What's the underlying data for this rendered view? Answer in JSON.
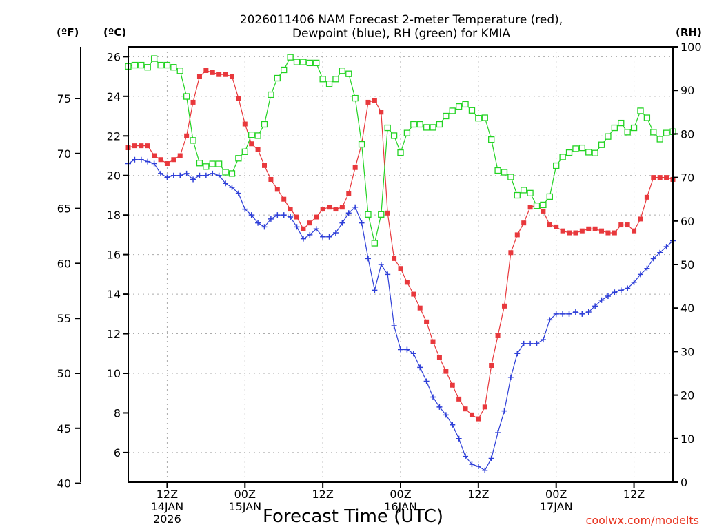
{
  "chart_data": {
    "type": "line",
    "title": "2026011406 NAM Forecast 2-meter Temperature (red),",
    "subtitle": "Dewpoint (blue), RH (green) for KMIA",
    "xlabel": "Forecast Time (UTC)",
    "credit": "coolwx.com/modelts",
    "left_unit_f": "(ºF)",
    "left_unit_c": "(ºC)",
    "right_unit": "(RH)",
    "x_unit": "hours since 2026-01-14 06Z",
    "xlim": [
      6,
      90
    ],
    "ylim_c": [
      4.5,
      26.5
    ],
    "ylim_rh": [
      0,
      100
    ],
    "grid": true,
    "x_ticks": [
      {
        "x": 12,
        "l1": "12Z",
        "l2": "14JAN",
        "l3": "2026"
      },
      {
        "x": 24,
        "l1": "00Z",
        "l2": "15JAN",
        "l3": ""
      },
      {
        "x": 36,
        "l1": "12Z",
        "l2": "",
        "l3": ""
      },
      {
        "x": 48,
        "l1": "00Z",
        "l2": "16JAN",
        "l3": ""
      },
      {
        "x": 60,
        "l1": "12Z",
        "l2": "",
        "l3": ""
      },
      {
        "x": 72,
        "l1": "00Z",
        "l2": "17JAN",
        "l3": ""
      },
      {
        "x": 84,
        "l1": "12Z",
        "l2": "",
        "l3": ""
      }
    ],
    "c_ticks": [
      6,
      8,
      10,
      12,
      14,
      16,
      18,
      20,
      22,
      24,
      26
    ],
    "f_ticks": [
      40,
      45,
      50,
      55,
      60,
      65,
      70,
      75
    ],
    "rh_ticks": [
      0,
      10,
      20,
      30,
      40,
      50,
      60,
      70,
      80,
      90,
      100
    ],
    "series": [
      {
        "name": "Temperature",
        "color": "#e8383c",
        "marker": "square-filled",
        "axis": "c",
        "points": [
          [
            6,
            21.4
          ],
          [
            7,
            21.5
          ],
          [
            8,
            21.5
          ],
          [
            9,
            21.5
          ],
          [
            10,
            21.0
          ],
          [
            11,
            20.8
          ],
          [
            12,
            20.6
          ],
          [
            13,
            20.8
          ],
          [
            14,
            21.0
          ],
          [
            15,
            22.0
          ],
          [
            16,
            23.7
          ],
          [
            17,
            25.0
          ],
          [
            18,
            25.3
          ],
          [
            19,
            25.2
          ],
          [
            20,
            25.1
          ],
          [
            21,
            25.1
          ],
          [
            22,
            25.0
          ],
          [
            23,
            23.9
          ],
          [
            24,
            22.6
          ],
          [
            25,
            21.6
          ],
          [
            26,
            21.3
          ],
          [
            27,
            20.5
          ],
          [
            28,
            19.8
          ],
          [
            29,
            19.3
          ],
          [
            30,
            18.8
          ],
          [
            31,
            18.3
          ],
          [
            32,
            17.9
          ],
          [
            33,
            17.3
          ],
          [
            34,
            17.6
          ],
          [
            35,
            17.9
          ],
          [
            36,
            18.3
          ],
          [
            37,
            18.4
          ],
          [
            38,
            18.3
          ],
          [
            39,
            18.4
          ],
          [
            40,
            19.1
          ],
          [
            41,
            20.4
          ],
          [
            42,
            21.6
          ],
          [
            43,
            23.7
          ],
          [
            44,
            23.8
          ],
          [
            45,
            23.2
          ],
          [
            46,
            18.1
          ],
          [
            47,
            15.8
          ],
          [
            48,
            15.3
          ],
          [
            49,
            14.6
          ],
          [
            50,
            14.0
          ],
          [
            51,
            13.3
          ],
          [
            52,
            12.6
          ],
          [
            53,
            11.6
          ],
          [
            54,
            10.8
          ],
          [
            55,
            10.1
          ],
          [
            56,
            9.4
          ],
          [
            57,
            8.7
          ],
          [
            58,
            8.2
          ],
          [
            59,
            7.9
          ],
          [
            60,
            7.7
          ],
          [
            61,
            8.3
          ],
          [
            62,
            10.4
          ],
          [
            63,
            11.9
          ],
          [
            64,
            13.4
          ],
          [
            65,
            16.1
          ],
          [
            66,
            17.0
          ],
          [
            67,
            17.6
          ],
          [
            68,
            18.4
          ],
          [
            69,
            18.5
          ],
          [
            70,
            18.2
          ],
          [
            71,
            17.5
          ],
          [
            72,
            17.4
          ],
          [
            73,
            17.2
          ],
          [
            74,
            17.1
          ],
          [
            75,
            17.1
          ],
          [
            76,
            17.2
          ],
          [
            77,
            17.3
          ],
          [
            78,
            17.3
          ],
          [
            79,
            17.2
          ],
          [
            80,
            17.1
          ],
          [
            81,
            17.1
          ],
          [
            82,
            17.5
          ],
          [
            83,
            17.5
          ],
          [
            84,
            17.2
          ],
          [
            85,
            17.8
          ],
          [
            86,
            18.9
          ],
          [
            87,
            19.9
          ],
          [
            88,
            19.9
          ],
          [
            89,
            19.9
          ],
          [
            90,
            19.8
          ]
        ]
      },
      {
        "name": "Dewpoint",
        "color": "#2e3fd8",
        "marker": "plus",
        "axis": "c",
        "points": [
          [
            6,
            20.6
          ],
          [
            7,
            20.8
          ],
          [
            8,
            20.8
          ],
          [
            9,
            20.7
          ],
          [
            10,
            20.6
          ],
          [
            11,
            20.1
          ],
          [
            12,
            19.9
          ],
          [
            13,
            20.0
          ],
          [
            14,
            20.0
          ],
          [
            15,
            20.1
          ],
          [
            16,
            19.8
          ],
          [
            17,
            20.0
          ],
          [
            18,
            20.0
          ],
          [
            19,
            20.1
          ],
          [
            20,
            20.0
          ],
          [
            21,
            19.6
          ],
          [
            22,
            19.4
          ],
          [
            23,
            19.1
          ],
          [
            24,
            18.3
          ],
          [
            25,
            18.0
          ],
          [
            26,
            17.6
          ],
          [
            27,
            17.4
          ],
          [
            28,
            17.8
          ],
          [
            29,
            18.0
          ],
          [
            30,
            18.0
          ],
          [
            31,
            17.9
          ],
          [
            32,
            17.4
          ],
          [
            33,
            16.8
          ],
          [
            34,
            17.0
          ],
          [
            35,
            17.3
          ],
          [
            36,
            16.9
          ],
          [
            37,
            16.9
          ],
          [
            38,
            17.1
          ],
          [
            39,
            17.6
          ],
          [
            40,
            18.1
          ],
          [
            41,
            18.4
          ],
          [
            42,
            17.6
          ],
          [
            43,
            15.8
          ],
          [
            44,
            14.2
          ],
          [
            45,
            15.5
          ],
          [
            46,
            15.0
          ],
          [
            47,
            12.4
          ],
          [
            48,
            11.2
          ],
          [
            49,
            11.2
          ],
          [
            50,
            11.0
          ],
          [
            51,
            10.3
          ],
          [
            52,
            9.6
          ],
          [
            53,
            8.8
          ],
          [
            54,
            8.3
          ],
          [
            55,
            7.9
          ],
          [
            56,
            7.4
          ],
          [
            57,
            6.7
          ],
          [
            58,
            5.8
          ],
          [
            59,
            5.4
          ],
          [
            60,
            5.3
          ],
          [
            61,
            5.1
          ],
          [
            62,
            5.7
          ],
          [
            63,
            7.0
          ],
          [
            64,
            8.1
          ],
          [
            65,
            9.8
          ],
          [
            66,
            11.0
          ],
          [
            67,
            11.5
          ],
          [
            68,
            11.5
          ],
          [
            69,
            11.5
          ],
          [
            70,
            11.7
          ],
          [
            71,
            12.7
          ],
          [
            72,
            13.0
          ],
          [
            73,
            13.0
          ],
          [
            74,
            13.0
          ],
          [
            75,
            13.1
          ],
          [
            76,
            13.0
          ],
          [
            77,
            13.1
          ],
          [
            78,
            13.4
          ],
          [
            79,
            13.7
          ],
          [
            80,
            13.9
          ],
          [
            81,
            14.1
          ],
          [
            82,
            14.2
          ],
          [
            83,
            14.3
          ],
          [
            84,
            14.6
          ],
          [
            85,
            15.0
          ],
          [
            86,
            15.3
          ],
          [
            87,
            15.8
          ],
          [
            88,
            16.1
          ],
          [
            89,
            16.4
          ],
          [
            90,
            16.7
          ]
        ]
      },
      {
        "name": "RH",
        "color": "#22d322",
        "marker": "square-open",
        "axis": "rh",
        "points": [
          [
            6,
            95.5
          ],
          [
            7,
            95.8
          ],
          [
            8,
            95.8
          ],
          [
            9,
            95.3
          ],
          [
            10,
            97.3
          ],
          [
            11,
            95.8
          ],
          [
            12,
            95.8
          ],
          [
            13,
            95.3
          ],
          [
            14,
            94.5
          ],
          [
            15,
            88.6
          ],
          [
            16,
            78.5
          ],
          [
            17,
            73.3
          ],
          [
            18,
            72.5
          ],
          [
            19,
            73.1
          ],
          [
            20,
            73.1
          ],
          [
            21,
            71.2
          ],
          [
            22,
            70.9
          ],
          [
            23,
            74.4
          ],
          [
            24,
            75.9
          ],
          [
            25,
            79.8
          ],
          [
            26,
            79.6
          ],
          [
            27,
            82.2
          ],
          [
            28,
            89.0
          ],
          [
            29,
            92.8
          ],
          [
            30,
            94.7
          ],
          [
            31,
            97.6
          ],
          [
            32,
            96.5
          ],
          [
            33,
            96.5
          ],
          [
            34,
            96.3
          ],
          [
            35,
            96.3
          ],
          [
            36,
            92.6
          ],
          [
            37,
            91.5
          ],
          [
            38,
            92.6
          ],
          [
            39,
            94.5
          ],
          [
            40,
            93.8
          ],
          [
            41,
            88.2
          ],
          [
            42,
            77.6
          ],
          [
            43,
            61.5
          ],
          [
            44,
            54.9
          ],
          [
            45,
            61.5
          ],
          [
            46,
            81.4
          ],
          [
            47,
            79.6
          ],
          [
            48,
            75.7
          ],
          [
            49,
            80.2
          ],
          [
            50,
            82.2
          ],
          [
            51,
            82.2
          ],
          [
            52,
            81.5
          ],
          [
            53,
            81.5
          ],
          [
            54,
            82.2
          ],
          [
            55,
            84.1
          ],
          [
            56,
            85.3
          ],
          [
            57,
            86.3
          ],
          [
            58,
            86.8
          ],
          [
            59,
            85.4
          ],
          [
            60,
            83.6
          ],
          [
            61,
            83.7
          ],
          [
            62,
            78.7
          ],
          [
            63,
            71.6
          ],
          [
            64,
            71.2
          ],
          [
            65,
            70.1
          ],
          [
            66,
            65.9
          ],
          [
            67,
            67.1
          ],
          [
            68,
            66.4
          ],
          [
            69,
            63.5
          ],
          [
            70,
            63.7
          ],
          [
            71,
            65.6
          ],
          [
            72,
            72.7
          ],
          [
            73,
            74.7
          ],
          [
            74,
            75.7
          ],
          [
            75,
            76.6
          ],
          [
            76,
            76.8
          ],
          [
            77,
            75.8
          ],
          [
            78,
            75.6
          ],
          [
            79,
            77.5
          ],
          [
            80,
            79.4
          ],
          [
            81,
            81.4
          ],
          [
            82,
            82.5
          ],
          [
            83,
            80.4
          ],
          [
            84,
            81.4
          ],
          [
            85,
            85.3
          ],
          [
            86,
            83.7
          ],
          [
            87,
            80.4
          ],
          [
            88,
            78.8
          ],
          [
            89,
            80.2
          ],
          [
            90,
            80.5
          ]
        ]
      }
    ]
  }
}
